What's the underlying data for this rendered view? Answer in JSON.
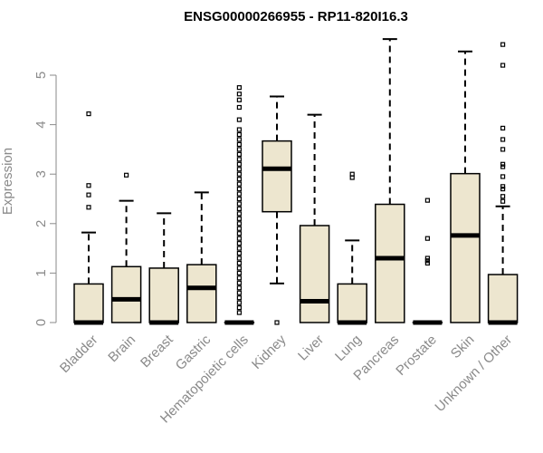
{
  "chart_data": {
    "type": "boxplot",
    "title": "ENSG00000266955 - RP11-820I16.3",
    "xlabel": "",
    "ylabel": "Expression",
    "ylim": [
      0,
      5.8
    ],
    "yticks": [
      0,
      1,
      2,
      3,
      4,
      5
    ],
    "colors": {
      "box_fill": "#ede6cf",
      "stroke": "#000000",
      "axis_text": "#8a8a8a"
    },
    "categories": [
      "Bladder",
      "Brain",
      "Breast",
      "Gastric",
      "Hematopoietic cells",
      "Kidney",
      "Liver",
      "Lung",
      "Pancreas",
      "Prostate",
      "Skin",
      "Unknown / Other"
    ],
    "boxes": [
      {
        "q1": 0,
        "median": 0,
        "q3": 0.78,
        "wlow": 0,
        "whigh": 1.82,
        "outliers": [
          4.22,
          2.77,
          2.58,
          2.33
        ]
      },
      {
        "q1": 0,
        "median": 0.47,
        "q3": 1.13,
        "wlow": 0,
        "whigh": 2.46,
        "outliers": [
          2.98
        ]
      },
      {
        "q1": 0,
        "median": 0,
        "q3": 1.1,
        "wlow": 0,
        "whigh": 2.21,
        "outliers": []
      },
      {
        "q1": 0,
        "median": 0.7,
        "q3": 1.17,
        "wlow": 0,
        "whigh": 2.63,
        "outliers": []
      },
      {
        "q1": 0,
        "median": 0,
        "q3": 0,
        "wlow": 0,
        "whigh": 0,
        "outliers": [
          4.75,
          4.62,
          4.5,
          4.35,
          4.1,
          3.9,
          3.8,
          3.7,
          3.6,
          3.5,
          3.4,
          3.3,
          3.2,
          3.1,
          3.0,
          2.9,
          2.8,
          2.7,
          2.6,
          2.5,
          2.4,
          2.3,
          2.2,
          2.1,
          2.0,
          1.9,
          1.8,
          1.7,
          1.6,
          1.5,
          1.4,
          1.3,
          1.2,
          1.1,
          1.0,
          0.9,
          0.8,
          0.7,
          0.6,
          0.5,
          0.4,
          0.3,
          0.2
        ]
      },
      {
        "q1": 2.24,
        "median": 3.11,
        "q3": 3.67,
        "wlow": 0.79,
        "whigh": 4.57,
        "outliers": [
          0
        ]
      },
      {
        "q1": 0,
        "median": 0.43,
        "q3": 1.96,
        "wlow": 0,
        "whigh": 4.2,
        "outliers": []
      },
      {
        "q1": 0,
        "median": 0,
        "q3": 0.78,
        "wlow": 0,
        "whigh": 1.66,
        "outliers": [
          3.0,
          2.93
        ]
      },
      {
        "q1": 0,
        "median": 1.3,
        "q3": 2.39,
        "wlow": 0,
        "whigh": 5.73,
        "outliers": []
      },
      {
        "q1": 0,
        "median": 0,
        "q3": 0,
        "wlow": 0,
        "whigh": 0,
        "outliers": [
          2.47,
          1.7,
          1.3,
          1.25,
          1.2
        ]
      },
      {
        "q1": 0,
        "median": 1.76,
        "q3": 3.01,
        "wlow": 0,
        "whigh": 5.48,
        "outliers": []
      },
      {
        "q1": 0,
        "median": 0,
        "q3": 0.97,
        "wlow": 0,
        "whigh": 2.35,
        "outliers": [
          5.62,
          5.2,
          3.93,
          3.7,
          3.5,
          3.2,
          3.15,
          2.95,
          2.75,
          2.7,
          2.55,
          2.45
        ]
      }
    ]
  }
}
